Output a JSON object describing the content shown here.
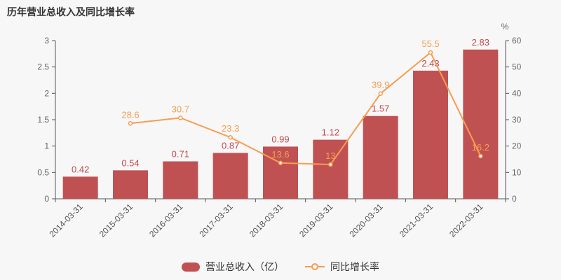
{
  "title": "历年营业总收入及同比增长率",
  "chart_data": {
    "type": "bar+line combo",
    "categories": [
      "2014-03-31",
      "2015-03-31",
      "2016-03-31",
      "2017-03-31",
      "2018-03-31",
      "2019-03-31",
      "2020-03-31",
      "2021-03-31",
      "2022-03-31"
    ],
    "series": [
      {
        "name": "营业总收入（亿）",
        "type": "bar",
        "axis": "left",
        "values": [
          0.42,
          0.54,
          0.71,
          0.87,
          0.99,
          1.12,
          1.57,
          2.43,
          2.83
        ]
      },
      {
        "name": "同比增长率",
        "type": "line",
        "axis": "right",
        "values": [
          null,
          28.6,
          30.7,
          23.3,
          13.6,
          13,
          39.9,
          55.5,
          16.2
        ]
      }
    ],
    "left_axis": {
      "min": 0,
      "max": 3,
      "ticks": [
        0,
        0.5,
        1,
        1.5,
        2,
        2.5,
        3
      ]
    },
    "right_axis": {
      "min": 0,
      "max": 60,
      "ticks": [
        0,
        10,
        20,
        30,
        40,
        50,
        60
      ],
      "unit": "%"
    },
    "x_label_rotation": 45,
    "grid": false,
    "legend_position": "bottom-center"
  },
  "colors": {
    "background": "#f7f7f7",
    "bar": "#c05152",
    "bar_label": "#c5484f",
    "line": "#f89c50",
    "marker_fill": "#ffffff",
    "axis_line": "#555555",
    "tick_label": "#666666",
    "x_label": "#555555",
    "title": "#333333",
    "legend_text": "#333333"
  }
}
